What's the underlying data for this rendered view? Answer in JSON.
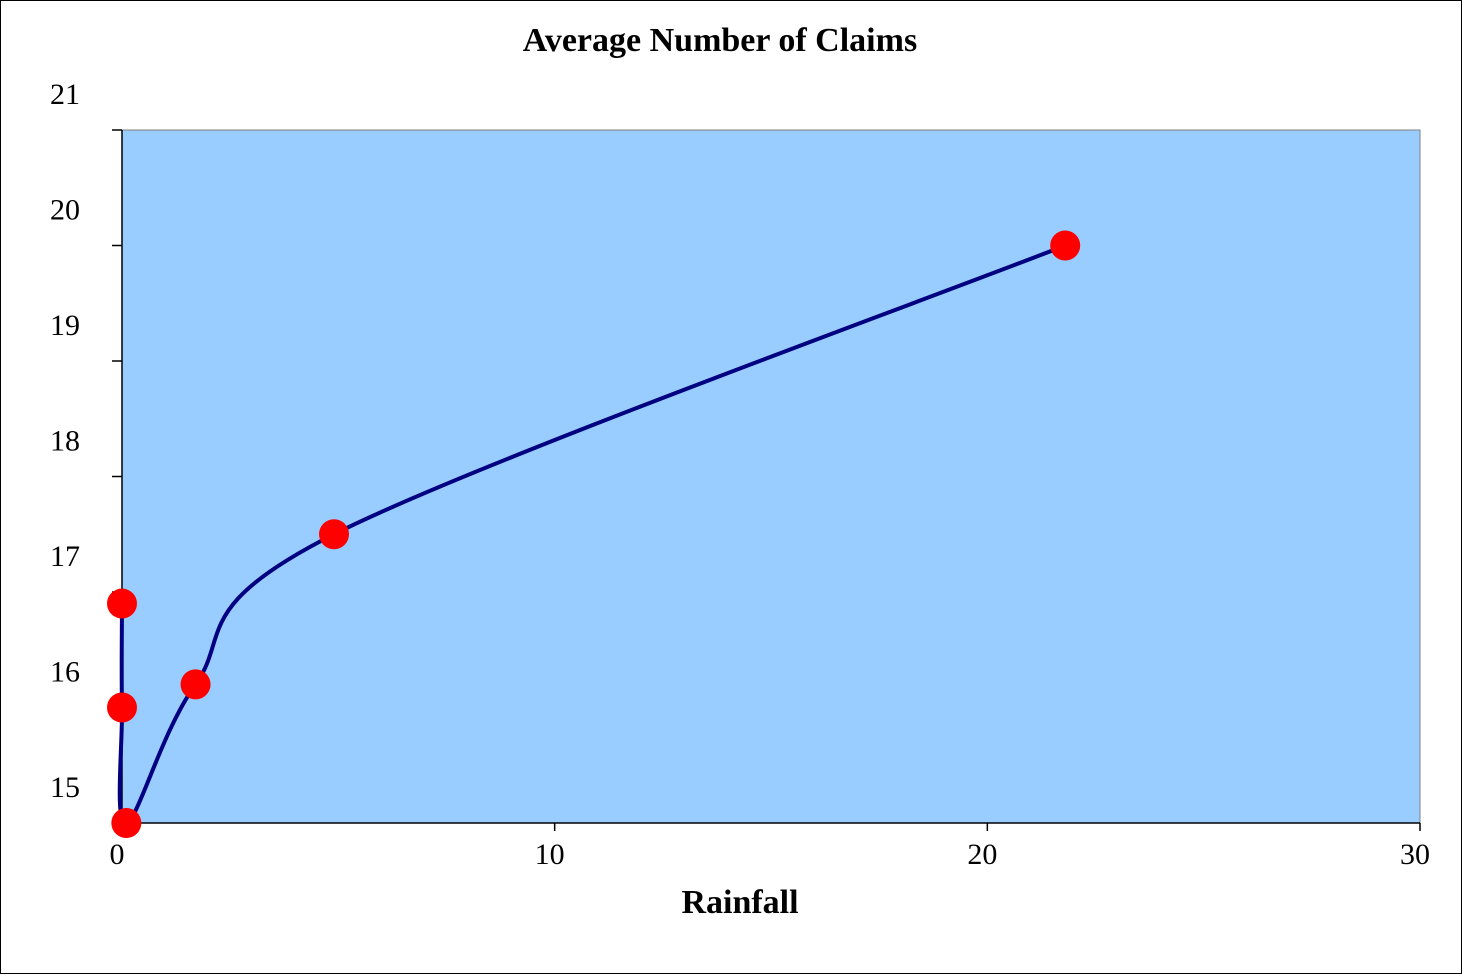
{
  "chart_data": {
    "type": "line",
    "title": "Average Number of Claims",
    "x_label": "Rainfall",
    "x": [
      0,
      0,
      0.1,
      1.7,
      4.9,
      21.8
    ],
    "series": [
      {
        "color": "#000080",
        "marker_color": "#ff0000",
        "values": [
          16.9,
          16.0,
          15.0,
          16.2,
          17.5,
          20.0
        ]
      }
    ],
    "smooth": true,
    "plot_background": "#99ccff",
    "xlim": [
      0,
      30
    ],
    "xticks": [
      0,
      10,
      20,
      30
    ],
    "ylim": [
      15,
      21
    ],
    "yticks": [
      15,
      16,
      17,
      18,
      19,
      20,
      21
    ]
  }
}
